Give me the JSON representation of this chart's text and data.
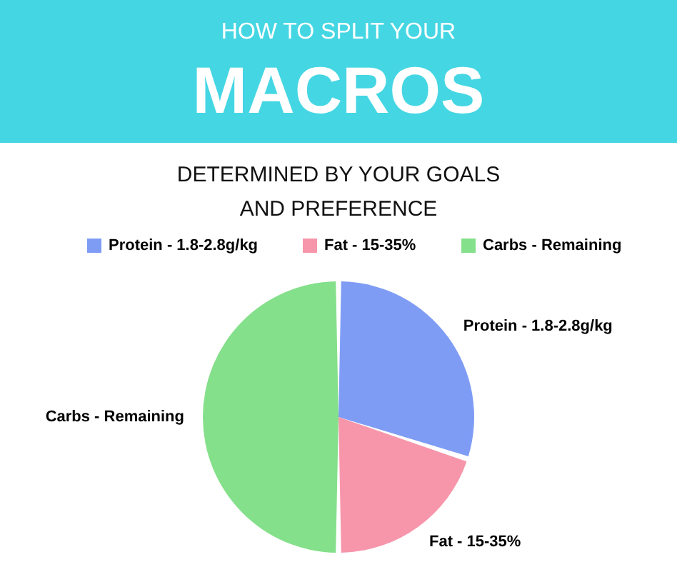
{
  "chart_data": {
    "type": "pie",
    "title": "HOW TO SPLIT YOUR\nMACROS",
    "subtitle": "DETERMINED BY YOUR GOALS\nAND PREFERENCE",
    "categories": [
      "Protein - 1.8-2.8g/kg",
      "Fat - 15-35%",
      "Carbs - Remaining"
    ],
    "values": [
      30,
      20,
      50
    ],
    "colors": [
      "#7f9cf5",
      "#f796ab",
      "#84e08a"
    ],
    "legend": "top"
  }
}
